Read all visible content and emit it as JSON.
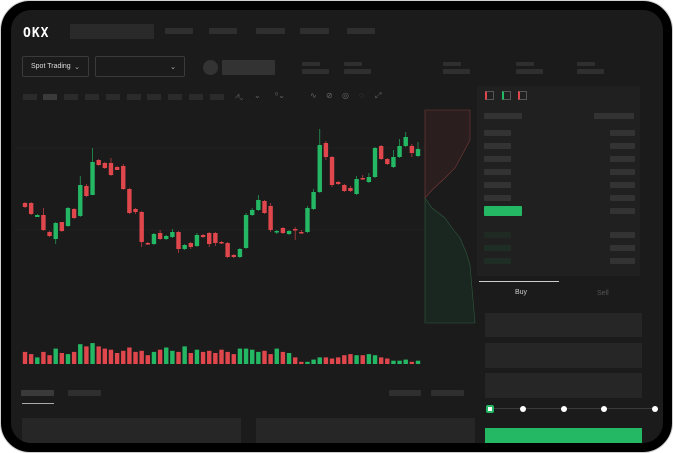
{
  "header": {
    "logo": "OKX"
  },
  "market": {
    "mode_label": "Spot Trading"
  },
  "order_form": {
    "buy_tab": "Buy",
    "sell_tab": "Sell",
    "leverage_marks": 5,
    "leverage_selected": 0
  },
  "colors": {
    "up": "#25b864",
    "down": "#e0474c",
    "background": "#1b1b1b"
  },
  "chart_data": {
    "type": "candlestick",
    "candles": [
      [
        67,
        63,
        68,
        62
      ],
      [
        67,
        56,
        68,
        55
      ],
      [
        53,
        55,
        56,
        53
      ],
      [
        55,
        40,
        62,
        39
      ],
      [
        38,
        34,
        39,
        33
      ],
      [
        31,
        47,
        48,
        26
      ],
      [
        48,
        39,
        48,
        38
      ],
      [
        44,
        62,
        63,
        43
      ],
      [
        61,
        52,
        62,
        51
      ],
      [
        54,
        85,
        94,
        53
      ],
      [
        84,
        74,
        86,
        73
      ],
      [
        75,
        108,
        122,
        75
      ],
      [
        110,
        105,
        111,
        104
      ],
      [
        107,
        102,
        108,
        101
      ],
      [
        107,
        95,
        112,
        94
      ],
      [
        103,
        100,
        104,
        100
      ],
      [
        104,
        81,
        106,
        80
      ],
      [
        81,
        57,
        82,
        56
      ],
      [
        61,
        58,
        62,
        56
      ],
      [
        58,
        28,
        59,
        23
      ],
      [
        27,
        26,
        28,
        25
      ],
      [
        26,
        36,
        37,
        25
      ],
      [
        37,
        31,
        40,
        30
      ],
      [
        31,
        34,
        35,
        30
      ],
      [
        33,
        38,
        41,
        32
      ],
      [
        38,
        21,
        39,
        17
      ],
      [
        21,
        25,
        26,
        20
      ],
      [
        27,
        23,
        28,
        21
      ],
      [
        24,
        35,
        37,
        23
      ],
      [
        35,
        33,
        36,
        32
      ],
      [
        37,
        26,
        38,
        23
      ],
      [
        37,
        27,
        38,
        24
      ],
      [
        28,
        27,
        29,
        26
      ],
      [
        27,
        13,
        28,
        12
      ],
      [
        15,
        13,
        16,
        12
      ],
      [
        13,
        21,
        22,
        12
      ],
      [
        22,
        55,
        57,
        21
      ],
      [
        55,
        60,
        62,
        54
      ],
      [
        60,
        70,
        75,
        59
      ],
      [
        69,
        57,
        70,
        56
      ],
      [
        64,
        40,
        67,
        38
      ],
      [
        38,
        39,
        40,
        36
      ],
      [
        42,
        37,
        43,
        36
      ],
      [
        36,
        39,
        40,
        35
      ],
      [
        41,
        40,
        43,
        30
      ],
      [
        38,
        37,
        40,
        36
      ],
      [
        38,
        62,
        64,
        37
      ],
      [
        61,
        78,
        81,
        60
      ],
      [
        78,
        125,
        141,
        77
      ],
      [
        127,
        113,
        129,
        110
      ],
      [
        113,
        85,
        114,
        83
      ],
      [
        88,
        86,
        89,
        85
      ],
      [
        85,
        79,
        86,
        78
      ],
      [
        82,
        79,
        84,
        78
      ],
      [
        76,
        91,
        94,
        75
      ],
      [
        92,
        91,
        95,
        90
      ],
      [
        88,
        93,
        97,
        87
      ],
      [
        93,
        122,
        123,
        92
      ],
      [
        124,
        111,
        125,
        110
      ],
      [
        111,
        106,
        112,
        105
      ],
      [
        103,
        113,
        120,
        102
      ],
      [
        113,
        124,
        131,
        112
      ],
      [
        124,
        133,
        138,
        123
      ],
      [
        124,
        117,
        126,
        113
      ],
      [
        114,
        121,
        128,
        113
      ]
    ],
    "candle_format": [
      "open",
      "close",
      "high",
      "low"
    ],
    "volumes": [
      55,
      45,
      30,
      55,
      40,
      70,
      50,
      45,
      55,
      90,
      80,
      95,
      80,
      70,
      65,
      50,
      60,
      75,
      55,
      60,
      40,
      55,
      65,
      75,
      60,
      55,
      80,
      50,
      65,
      55,
      60,
      50,
      65,
      55,
      45,
      70,
      70,
      65,
      55,
      60,
      45,
      70,
      55,
      50,
      30,
      10,
      10,
      20,
      30,
      30,
      25,
      30,
      40,
      45,
      40,
      40,
      45,
      40,
      30,
      25,
      15,
      15,
      20,
      10,
      15
    ],
    "grid": true
  }
}
